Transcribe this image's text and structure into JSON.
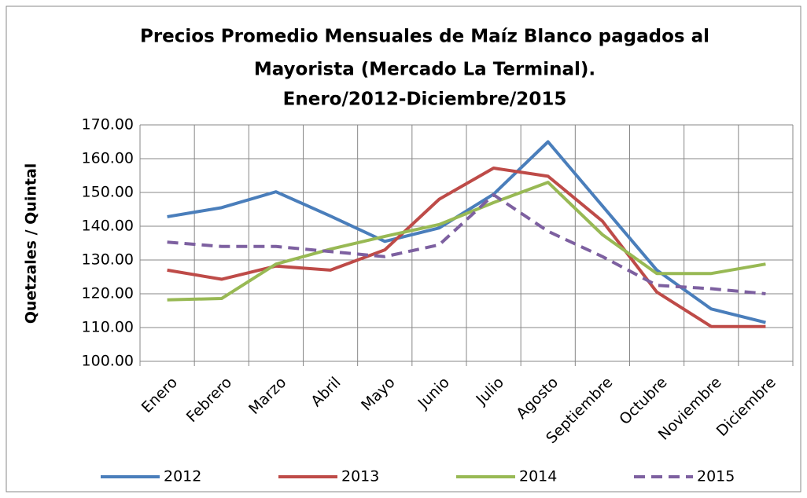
{
  "chart_data": {
    "type": "line",
    "title": [
      "Precios Promedio Mensuales de Maíz Blanco pagados al",
      "Mayorista (Mercado La Terminal).",
      "Enero/2012-Diciembre/2015"
    ],
    "y_label": "Quetzales / Quintal",
    "categories": [
      "Enero",
      "Febrero",
      "Marzo",
      "Abril",
      "Mayo",
      "Junio",
      "Julio",
      "Agosto",
      "Septiembre",
      "Octubre",
      "Noviembre",
      "Diciembre"
    ],
    "series": [
      {
        "name": "2012",
        "color": "#4a7ebb",
        "dashed": false,
        "values": [
          142.8,
          145.5,
          150.2,
          143,
          135.5,
          139.5,
          149.5,
          165,
          146,
          127,
          115.5,
          111.5
        ]
      },
      {
        "name": "2013",
        "color": "#be4b48",
        "dashed": false,
        "values": [
          127,
          124.3,
          128.2,
          127,
          133,
          148,
          157.2,
          154.8,
          141.5,
          120.5,
          110.3,
          110.3
        ]
      },
      {
        "name": "2014",
        "color": "#98b954",
        "dashed": false,
        "values": [
          118.2,
          118.6,
          128.8,
          133.2,
          137,
          140.5,
          147,
          153,
          137.5,
          126,
          126,
          128.8
        ]
      },
      {
        "name": "2015",
        "color": "#7d60a0",
        "dashed": true,
        "values": [
          135.3,
          134,
          134,
          132.5,
          131,
          134.5,
          149.3,
          138.5,
          131,
          122.5,
          121.5,
          120
        ]
      }
    ],
    "ylim": [
      100,
      170
    ],
    "yticks": [
      {
        "value": 100,
        "label": "100.00"
      },
      {
        "value": 110,
        "label": "110.00"
      },
      {
        "value": 120,
        "label": "120.00"
      },
      {
        "value": 130,
        "label": "130.00"
      },
      {
        "value": 140,
        "label": "140.00"
      },
      {
        "value": 150,
        "label": "150.00"
      },
      {
        "value": 160,
        "label": "160.00"
      },
      {
        "value": 170,
        "label": "170.00"
      }
    ],
    "grid": true,
    "legend": "bottom"
  }
}
